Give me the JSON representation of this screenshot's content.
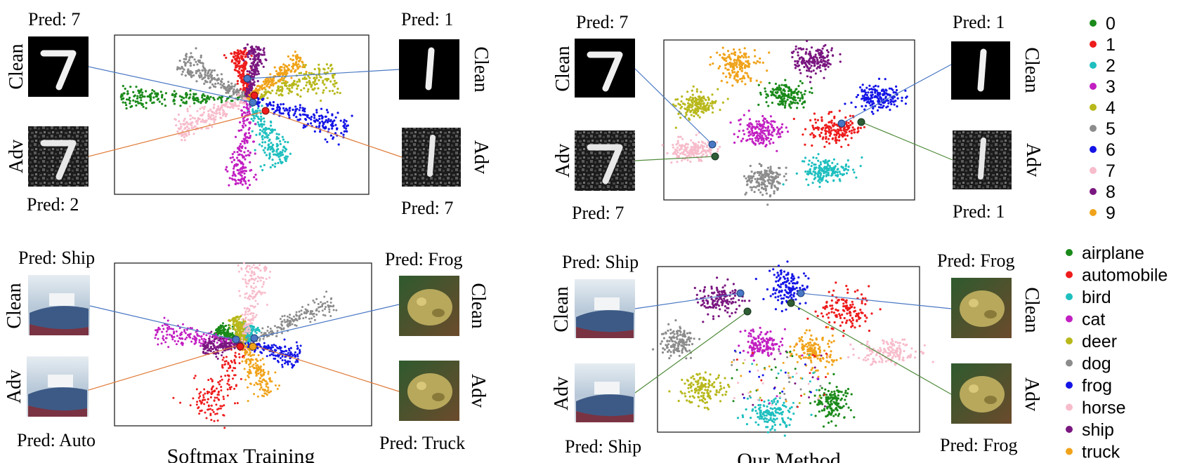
{
  "colors": {
    "digits": [
      "#1a8a1a",
      "#ee1c1c",
      "#1fbfbf",
      "#c21fc2",
      "#b8b81c",
      "#8c8c8c",
      "#1414e6",
      "#f7bccb",
      "#7a1680",
      "#f0a31a"
    ],
    "leader_clean": "#4a78c4",
    "leader_adv_softmax": "#e07b39",
    "leader_adv_ours": "#4f8a3a",
    "marker_fill": "#4a78c4",
    "marker_fill_dark": "#2f5d35"
  },
  "legend_mnist": {
    "entries": [
      {
        "label": "0",
        "color": "#1a8a1a"
      },
      {
        "label": "1",
        "color": "#ee1c1c"
      },
      {
        "label": "2",
        "color": "#1fbfbf"
      },
      {
        "label": "3",
        "color": "#c21fc2"
      },
      {
        "label": "4",
        "color": "#b8b81c"
      },
      {
        "label": "5",
        "color": "#8c8c8c"
      },
      {
        "label": "6",
        "color": "#1414e6"
      },
      {
        "label": "7",
        "color": "#f7bccb"
      },
      {
        "label": "8",
        "color": "#7a1680"
      },
      {
        "label": "9",
        "color": "#f0a31a"
      }
    ]
  },
  "legend_cifar": {
    "entries": [
      {
        "label": "airplane",
        "color": "#1a8a1a"
      },
      {
        "label": "automobile",
        "color": "#ee1c1c"
      },
      {
        "label": "bird",
        "color": "#1fbfbf"
      },
      {
        "label": "cat",
        "color": "#c21fc2"
      },
      {
        "label": "deer",
        "color": "#b8b81c"
      },
      {
        "label": "dog",
        "color": "#8c8c8c"
      },
      {
        "label": "frog",
        "color": "#1414e6"
      },
      {
        "label": "horse",
        "color": "#f7bccb"
      },
      {
        "label": "ship",
        "color": "#7a1680"
      },
      {
        "label": "truck",
        "color": "#f0a31a"
      }
    ]
  },
  "panels": {
    "mnist_softmax": {
      "pred_clean_left": "Pred: 7",
      "pred_adv_left": "Pred: 2",
      "pred_clean_right": "Pred: 1",
      "pred_adv_right": "Pred: 7",
      "label_clean": "Clean",
      "label_adv": "Adv"
    },
    "mnist_ours": {
      "pred_clean_left": "Pred: 7",
      "pred_adv_left": "Pred: 7",
      "pred_clean_right": "Pred: 1",
      "pred_adv_right": "Pred: 1",
      "label_clean": "Clean",
      "label_adv": "Adv"
    },
    "cifar_softmax": {
      "pred_clean_left": "Pred: Ship",
      "pred_adv_left": "Pred: Auto",
      "pred_clean_right": "Pred: Frog",
      "pred_adv_right": "Pred: Truck",
      "label_clean": "Clean",
      "label_adv": "Adv"
    },
    "cifar_ours": {
      "pred_clean_left": "Pred: Ship",
      "pred_adv_left": "Pred: Ship",
      "pred_clean_right": "Pred: Frog",
      "pred_adv_right": "Pred: Frog",
      "label_clean": "Clean",
      "label_adv": "Adv"
    }
  },
  "captions": {
    "left": "Softmax Training",
    "right": "Our Method"
  }
}
